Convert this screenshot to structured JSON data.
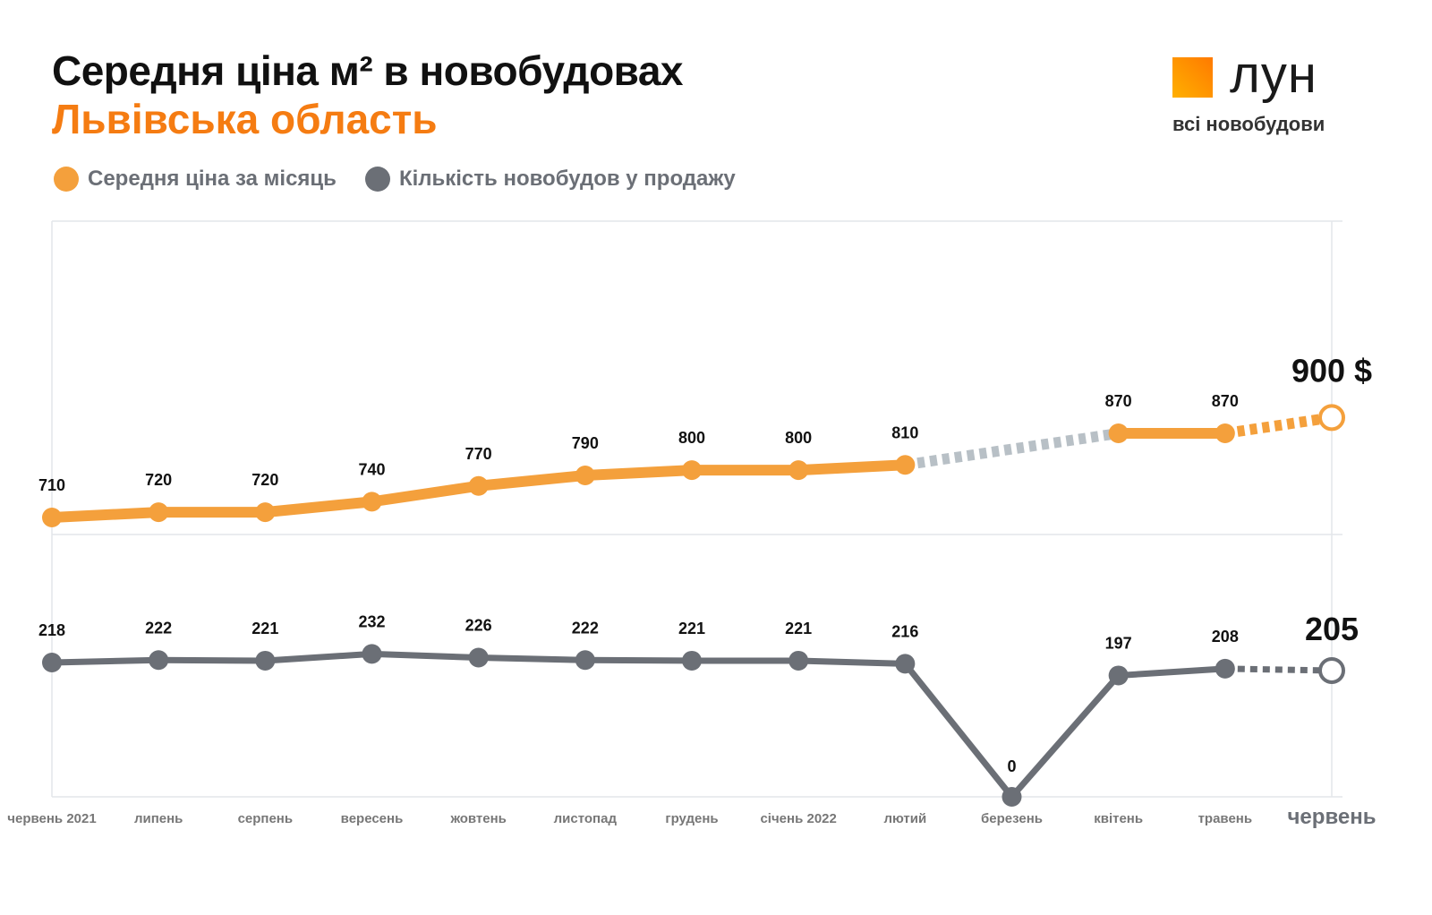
{
  "header": {
    "title": "Середня ціна м² в новобудовах",
    "subtitle": "Львівська область"
  },
  "logo": {
    "name": "ЛУН",
    "tagline": "всі новобудови"
  },
  "chart_data": {
    "type": "line",
    "categories": [
      "червень 2021",
      "липень",
      "серпень",
      "вересень",
      "жовтень",
      "листопад",
      "грудень",
      "січень 2022",
      "лютий",
      "березень",
      "квітень",
      "травень",
      "червень"
    ],
    "series": [
      {
        "name": "Середня ціна за місяць",
        "color": "#f4a03c",
        "values": [
          710,
          720,
          720,
          740,
          770,
          790,
          800,
          800,
          810,
          null,
          870,
          870,
          900
        ],
        "final_label": "900 $"
      },
      {
        "name": "Кількість новобудов у продажу",
        "color": "#6b6f76",
        "values": [
          218,
          222,
          221,
          232,
          226,
          222,
          221,
          221,
          216,
          0,
          197,
          208,
          205
        ],
        "final_label": "205"
      }
    ],
    "grid": true,
    "legend": "top-left",
    "projected_last_point": true
  }
}
